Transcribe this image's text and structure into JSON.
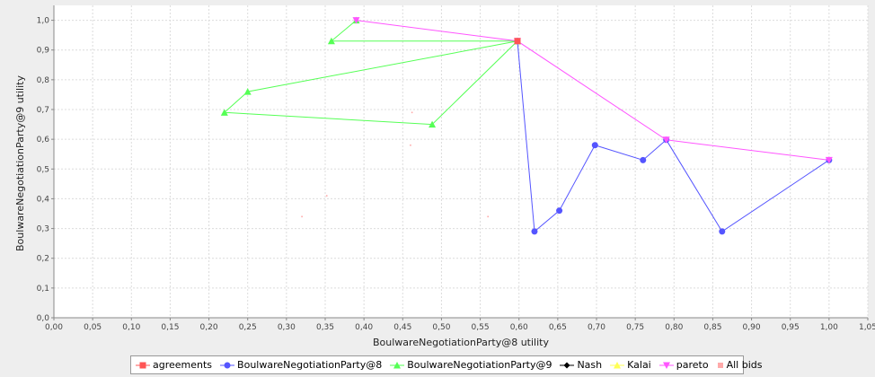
{
  "chart_data": {
    "type": "scatter",
    "xlabel": "BoulwareNegotiationParty@8 utility",
    "ylabel": "BoulwareNegotiationParty@9 utility",
    "xlim": [
      0,
      1.05
    ],
    "ylim": [
      0,
      1.05
    ],
    "x_ticks": [
      "0,00",
      "0,05",
      "0,10",
      "0,15",
      "0,20",
      "0,25",
      "0,30",
      "0,35",
      "0,40",
      "0,45",
      "0,50",
      "0,55",
      "0,60",
      "0,65",
      "0,70",
      "0,75",
      "0,80",
      "0,85",
      "0,90",
      "0,95",
      "1,00",
      "1,05"
    ],
    "y_ticks": [
      "0,0",
      "0,1",
      "0,2",
      "0,3",
      "0,4",
      "0,5",
      "0,6",
      "0,7",
      "0,8",
      "0,9",
      "1,0"
    ],
    "grid": true,
    "legend_position": "bottom",
    "series": [
      {
        "name": "agreements",
        "color": "#ff5555",
        "marker": "square",
        "line": false,
        "points": [
          [
            0.598,
            0.93
          ]
        ]
      },
      {
        "name": "BoulwareNegotiationParty@8",
        "color": "#5555ff",
        "marker": "circle",
        "line": true,
        "points": [
          [
            1.0,
            0.53
          ],
          [
            0.862,
            0.29
          ],
          [
            0.79,
            0.598
          ],
          [
            0.76,
            0.53
          ],
          [
            0.698,
            0.58
          ],
          [
            0.652,
            0.36
          ],
          [
            0.62,
            0.29
          ],
          [
            0.598,
            0.93
          ]
        ]
      },
      {
        "name": "BoulwareNegotiationParty@9",
        "color": "#55ff55",
        "marker": "triangle",
        "line": true,
        "points": [
          [
            0.39,
            1.0
          ],
          [
            0.358,
            0.93
          ],
          [
            0.598,
            0.93
          ],
          [
            0.25,
            0.76
          ],
          [
            0.22,
            0.69
          ],
          [
            0.488,
            0.65
          ],
          [
            0.598,
            0.93
          ]
        ]
      },
      {
        "name": "Nash",
        "color": "#000000",
        "marker": "diamond",
        "line": false,
        "points": []
      },
      {
        "name": "Kalai",
        "color": "#ffff55",
        "marker": "triangle",
        "line": false,
        "points": []
      },
      {
        "name": "pareto",
        "color": "#ff55ff",
        "marker": "triangle-down",
        "line": true,
        "points": [
          [
            0.39,
            1.0
          ],
          [
            0.598,
            0.93
          ],
          [
            0.79,
            0.598
          ],
          [
            1.0,
            0.53
          ]
        ]
      },
      {
        "name": "All bids",
        "color": "#ffaaaa",
        "marker": "dot",
        "line": false,
        "points": [
          [
            0.32,
            0.34
          ],
          [
            0.352,
            0.41
          ],
          [
            0.46,
            0.58
          ],
          [
            0.462,
            0.69
          ],
          [
            0.56,
            0.34
          ],
          [
            0.39,
            1.0
          ],
          [
            0.598,
            0.93
          ],
          [
            0.79,
            0.598
          ],
          [
            1.0,
            0.53
          ]
        ]
      }
    ]
  }
}
